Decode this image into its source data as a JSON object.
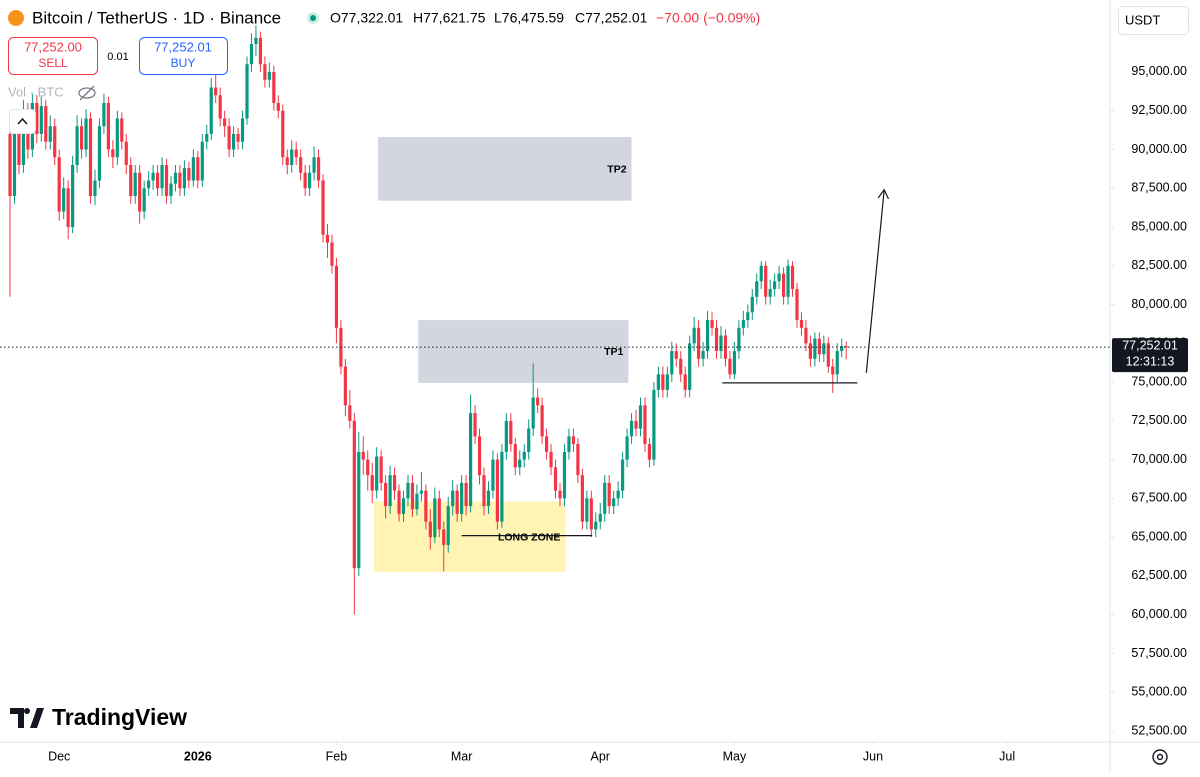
{
  "header": {
    "title": "Bitcoin / TetherUS · 1D · Binance",
    "ohlc": [
      "O77,322.01",
      "H77,621.75",
      "L76,475.59",
      "C77,252.01",
      "−70.00 (−0.09%)"
    ],
    "sell_price": "77,252.00",
    "sell": "SELL",
    "spread": "0.01",
    "buy_price": "77,252.01",
    "buy": "BUY",
    "volume": "Vol · BTC",
    "currency": "USDT",
    "logo": "TradingView"
  },
  "chart_data": {
    "type": "candlestick",
    "colors": {
      "up": "#089981",
      "down": "#f23645"
    },
    "xlim": [
      -2.24,
      246
    ],
    "ylim": [
      51790,
      99640
    ],
    "xticks": [
      {
        "value": 11,
        "label": "Dec"
      },
      {
        "value": 42,
        "label": "2026"
      },
      {
        "value": 73,
        "label": "Feb"
      },
      {
        "value": 101,
        "label": "Mar"
      },
      {
        "value": 132,
        "label": "Apr"
      },
      {
        "value": 162,
        "label": "May"
      },
      {
        "value": 193,
        "label": "Jun"
      },
      {
        "value": 223,
        "label": "Jul"
      }
    ],
    "yticks": [
      {
        "value": 52500,
        "label": "52,500.00"
      },
      {
        "value": 55000,
        "label": "55,000.00"
      },
      {
        "value": 57500,
        "label": "57,500.00"
      },
      {
        "value": 60000,
        "label": "60,000.00"
      },
      {
        "value": 62500,
        "label": "62,500.00"
      },
      {
        "value": 65000,
        "label": "65,000.00"
      },
      {
        "value": 67500,
        "label": "67,500.00"
      },
      {
        "value": 70000,
        "label": "70,000.00"
      },
      {
        "value": 72500,
        "label": "72,500.00"
      },
      {
        "value": 75000,
        "label": "75,000.00"
      },
      {
        "value": 77500,
        "label": "77,500.00"
      },
      {
        "value": 80000,
        "label": "80,000.00"
      },
      {
        "value": 82500,
        "label": "82,500.00"
      },
      {
        "value": 85000,
        "label": "85,000.00"
      },
      {
        "value": 87500,
        "label": "87,500.00"
      },
      {
        "value": 90000,
        "label": "90,000.00"
      },
      {
        "value": 92500,
        "label": "92,500.00"
      },
      {
        "value": 95000,
        "label": "95,000.00"
      }
    ],
    "price_label": "77,252.01",
    "countdown": "12:31:13",
    "zones": [
      {
        "label": "TP2",
        "x": [
          82.3,
          139
        ],
        "y": [
          86700,
          90800
        ],
        "color": "#d1d4dc"
      },
      {
        "label": "TP1",
        "x": [
          91.3,
          138.3
        ],
        "y": [
          74950,
          79000
        ],
        "color": "#d1d4dc"
      },
      {
        "label": "LONG ZONE",
        "x": [
          81.4,
          124.2
        ],
        "y": [
          62750,
          67300
        ],
        "color": "#fff3b0"
      }
    ],
    "lines": [
      {
        "x": [
          101,
          130.2
        ],
        "y": [
          65100,
          65100
        ]
      },
      {
        "x": [
          159.3,
          189.5
        ],
        "y": [
          74950,
          74950
        ]
      }
    ],
    "arrow": {
      "x": [
        191.5,
        195.5
      ],
      "y": [
        75600,
        87400
      ]
    },
    "values": [
      [
        91000,
        91500,
        80500,
        87000
      ],
      [
        87000,
        92200,
        86500,
        91500
      ],
      [
        91500,
        92000,
        88400,
        89000
      ],
      [
        89000,
        93200,
        88500,
        92500
      ],
      [
        92500,
        93000,
        89400,
        90000
      ],
      [
        90000,
        93600,
        89500,
        93000
      ],
      [
        93000,
        93500,
        90400,
        91000
      ],
      [
        91000,
        93400,
        90500,
        92800
      ],
      [
        92800,
        93200,
        90000,
        90500
      ],
      [
        90500,
        92200,
        90000,
        91500
      ],
      [
        91500,
        92000,
        89000,
        89500
      ],
      [
        89500,
        90000,
        85400,
        86000
      ],
      [
        86000,
        88200,
        85500,
        87500
      ],
      [
        87500,
        88000,
        84200,
        85000
      ],
      [
        85000,
        89600,
        84600,
        89000
      ],
      [
        89000,
        92200,
        88500,
        91500
      ],
      [
        91500,
        92000,
        89400,
        90000
      ],
      [
        90000,
        92600,
        89500,
        92000
      ],
      [
        92000,
        92400,
        86500,
        87000
      ],
      [
        87000,
        88700,
        86400,
        88000
      ],
      [
        88000,
        92000,
        87500,
        91500
      ],
      [
        91500,
        93600,
        91000,
        93000
      ],
      [
        93000,
        93400,
        89500,
        90000
      ],
      [
        90000,
        90600,
        88800,
        89500
      ],
      [
        89500,
        92500,
        89000,
        92000
      ],
      [
        92000,
        92400,
        90000,
        90500
      ],
      [
        90500,
        91000,
        88400,
        89000
      ],
      [
        89000,
        89500,
        86500,
        87000
      ],
      [
        87000,
        89000,
        86500,
        88500
      ],
      [
        88500,
        89000,
        85200,
        86000
      ],
      [
        86000,
        88000,
        85500,
        87500
      ],
      [
        87500,
        88600,
        87000,
        88000
      ],
      [
        88000,
        89000,
        87400,
        88500
      ],
      [
        88500,
        89000,
        87000,
        87500
      ],
      [
        87500,
        89500,
        87000,
        89000
      ],
      [
        89000,
        89400,
        86500,
        87000
      ],
      [
        87000,
        88300,
        86500,
        87800
      ],
      [
        87800,
        89000,
        87300,
        88500
      ],
      [
        88500,
        89000,
        87000,
        87500
      ],
      [
        87500,
        89300,
        87000,
        88800
      ],
      [
        88800,
        89200,
        87500,
        88000
      ],
      [
        88000,
        90000,
        87600,
        89500
      ],
      [
        89500,
        89900,
        87500,
        88000
      ],
      [
        88000,
        91000,
        87600,
        90500
      ],
      [
        90500,
        91600,
        90000,
        91000
      ],
      [
        91000,
        94600,
        90600,
        94000
      ],
      [
        94000,
        94800,
        93000,
        93500
      ],
      [
        93500,
        94000,
        91500,
        92000
      ],
      [
        92000,
        92500,
        90800,
        91500
      ],
      [
        91500,
        92000,
        89500,
        90000
      ],
      [
        90000,
        91500,
        89500,
        91000
      ],
      [
        91000,
        91400,
        90000,
        90500
      ],
      [
        90500,
        92500,
        90000,
        92000
      ],
      [
        92000,
        96000,
        91600,
        95500
      ],
      [
        95500,
        97500,
        95000,
        96800
      ],
      [
        96800,
        98000,
        96000,
        97200
      ],
      [
        97200,
        97600,
        95000,
        95500
      ],
      [
        95500,
        96000,
        94000,
        94500
      ],
      [
        94500,
        95600,
        94000,
        95000
      ],
      [
        95000,
        95400,
        92500,
        93000
      ],
      [
        93000,
        93500,
        92000,
        92500
      ],
      [
        92500,
        92900,
        89000,
        89500
      ],
      [
        89500,
        90000,
        88400,
        89000
      ],
      [
        89000,
        90600,
        88500,
        90000
      ],
      [
        90000,
        90500,
        89000,
        89500
      ],
      [
        89500,
        90000,
        88000,
        88500
      ],
      [
        88500,
        89000,
        87000,
        87500
      ],
      [
        87500,
        89000,
        87000,
        88500
      ],
      [
        88500,
        90200,
        88000,
        89500
      ],
      [
        89500,
        90000,
        87500,
        88000
      ],
      [
        88000,
        88400,
        84000,
        84500
      ],
      [
        84500,
        85200,
        83000,
        84000
      ],
      [
        84000,
        84500,
        82000,
        82500
      ],
      [
        82500,
        83000,
        77500,
        78500
      ],
      [
        78500,
        79000,
        75500,
        76000
      ],
      [
        76000,
        76500,
        72800,
        73500
      ],
      [
        73500,
        74500,
        72000,
        72500
      ],
      [
        72500,
        73000,
        60000,
        63000
      ],
      [
        63000,
        71800,
        62500,
        70500
      ],
      [
        70500,
        71500,
        69000,
        70000
      ],
      [
        70000,
        70600,
        68000,
        69000
      ],
      [
        69000,
        69800,
        67200,
        68000
      ],
      [
        68000,
        70800,
        67500,
        70200
      ],
      [
        70200,
        70600,
        68000,
        68500
      ],
      [
        68500,
        69000,
        66200,
        67000
      ],
      [
        67000,
        69600,
        66500,
        69000
      ],
      [
        69000,
        69500,
        67400,
        68000
      ],
      [
        68000,
        68400,
        66000,
        66500
      ],
      [
        66500,
        68000,
        66000,
        67500
      ],
      [
        67500,
        69000,
        67000,
        68500
      ],
      [
        68500,
        69000,
        66300,
        66800
      ],
      [
        66800,
        68400,
        66400,
        67800
      ],
      [
        67800,
        69200,
        67300,
        68000
      ],
      [
        68000,
        68400,
        65500,
        66000
      ],
      [
        66000,
        66800,
        64200,
        65000
      ],
      [
        65000,
        68200,
        64600,
        67500
      ],
      [
        67500,
        68000,
        65000,
        65500
      ],
      [
        65500,
        66000,
        62800,
        64500
      ],
      [
        64500,
        67600,
        64000,
        67000
      ],
      [
        67000,
        68700,
        66400,
        68000
      ],
      [
        68000,
        68400,
        66000,
        66500
      ],
      [
        66500,
        69000,
        66000,
        68500
      ],
      [
        68500,
        69000,
        66400,
        67000
      ],
      [
        67000,
        74200,
        66600,
        73000
      ],
      [
        73000,
        73500,
        71000,
        71500
      ],
      [
        71500,
        72000,
        68400,
        69000
      ],
      [
        69000,
        69500,
        66400,
        67000
      ],
      [
        67000,
        68600,
        66500,
        68000
      ],
      [
        68000,
        70600,
        67500,
        70000
      ],
      [
        70000,
        70400,
        65500,
        66000
      ],
      [
        66000,
        71000,
        65600,
        70500
      ],
      [
        70500,
        73000,
        70000,
        72500
      ],
      [
        72500,
        73000,
        70500,
        71000
      ],
      [
        71000,
        71400,
        69000,
        69500
      ],
      [
        69500,
        70600,
        69000,
        70000
      ],
      [
        70000,
        71000,
        69500,
        70500
      ],
      [
        70500,
        72600,
        70000,
        72000
      ],
      [
        72000,
        76200,
        71500,
        74000
      ],
      [
        74000,
        74600,
        73000,
        73500
      ],
      [
        73500,
        74000,
        71000,
        71500
      ],
      [
        71500,
        72000,
        70000,
        70500
      ],
      [
        70500,
        71000,
        69000,
        69500
      ],
      [
        69500,
        70000,
        67500,
        68000
      ],
      [
        68000,
        68500,
        67000,
        67500
      ],
      [
        67500,
        71000,
        67000,
        70500
      ],
      [
        70500,
        72000,
        70000,
        71500
      ],
      [
        71500,
        72000,
        70500,
        71000
      ],
      [
        71000,
        71400,
        68500,
        69000
      ],
      [
        69000,
        69400,
        65500,
        66000
      ],
      [
        66000,
        68000,
        65500,
        67500
      ],
      [
        67500,
        68000,
        65000,
        65500
      ],
      [
        65500,
        66600,
        65000,
        66000
      ],
      [
        66000,
        67200,
        65500,
        66500
      ],
      [
        66500,
        69000,
        66000,
        68500
      ],
      [
        68500,
        69000,
        66500,
        67000
      ],
      [
        67000,
        68000,
        66500,
        67500
      ],
      [
        67500,
        68600,
        67000,
        68000
      ],
      [
        68000,
        70500,
        67500,
        70000
      ],
      [
        70000,
        72000,
        69500,
        71500
      ],
      [
        71500,
        73000,
        71000,
        72500
      ],
      [
        72500,
        73200,
        71500,
        72000
      ],
      [
        72000,
        74000,
        71500,
        73500
      ],
      [
        73500,
        74000,
        70500,
        71000
      ],
      [
        71000,
        71400,
        69500,
        70000
      ],
      [
        70000,
        75000,
        69600,
        74500
      ],
      [
        74500,
        76000,
        74000,
        75500
      ],
      [
        75500,
        76000,
        74000,
        74500
      ],
      [
        74500,
        76000,
        74000,
        75500
      ],
      [
        75500,
        77600,
        75000,
        77000
      ],
      [
        77000,
        77500,
        76000,
        76500
      ],
      [
        76500,
        77000,
        75000,
        75500
      ],
      [
        75500,
        76000,
        74000,
        74500
      ],
      [
        74500,
        78000,
        74000,
        77500
      ],
      [
        77500,
        79200,
        77000,
        78500
      ],
      [
        78500,
        79000,
        76000,
        76500
      ],
      [
        76500,
        77600,
        76000,
        77000
      ],
      [
        77000,
        79600,
        76500,
        79000
      ],
      [
        79000,
        79500,
        78000,
        78500
      ],
      [
        78500,
        79000,
        76500,
        77000
      ],
      [
        77000,
        78600,
        76500,
        78000
      ],
      [
        78000,
        78400,
        76000,
        76500
      ],
      [
        76500,
        77000,
        75200,
        75500
      ],
      [
        75500,
        77600,
        75200,
        77000
      ],
      [
        77000,
        79000,
        76500,
        78500
      ],
      [
        78500,
        79600,
        78000,
        79000
      ],
      [
        79000,
        80000,
        78500,
        79500
      ],
      [
        79500,
        81000,
        79000,
        80500
      ],
      [
        80500,
        82000,
        80000,
        81500
      ],
      [
        81500,
        82800,
        81000,
        82500
      ],
      [
        82500,
        82800,
        80000,
        80500
      ],
      [
        80500,
        81600,
        80000,
        81000
      ],
      [
        81000,
        82000,
        80500,
        81500
      ],
      [
        81500,
        82500,
        81000,
        82000
      ],
      [
        82000,
        82400,
        80000,
        80500
      ],
      [
        80500,
        82900,
        80000,
        82500
      ],
      [
        82500,
        82800,
        80500,
        81000
      ],
      [
        81000,
        81400,
        78500,
        79000
      ],
      [
        79000,
        79500,
        78000,
        78500
      ],
      [
        78500,
        79000,
        77000,
        77500
      ],
      [
        77500,
        78000,
        76000,
        76500
      ],
      [
        76500,
        78200,
        76000,
        77800
      ],
      [
        77800,
        78200,
        76300,
        76800
      ],
      [
        76800,
        78000,
        76300,
        77500
      ],
      [
        77500,
        77900,
        75600,
        76000
      ],
      [
        76000,
        76500,
        74300,
        75500
      ],
      [
        75500,
        77500,
        75000,
        77000
      ],
      [
        77000,
        77800,
        76600,
        77322.01
      ],
      [
        77322.01,
        77621.75,
        76475.59,
        77252.01
      ]
    ]
  }
}
